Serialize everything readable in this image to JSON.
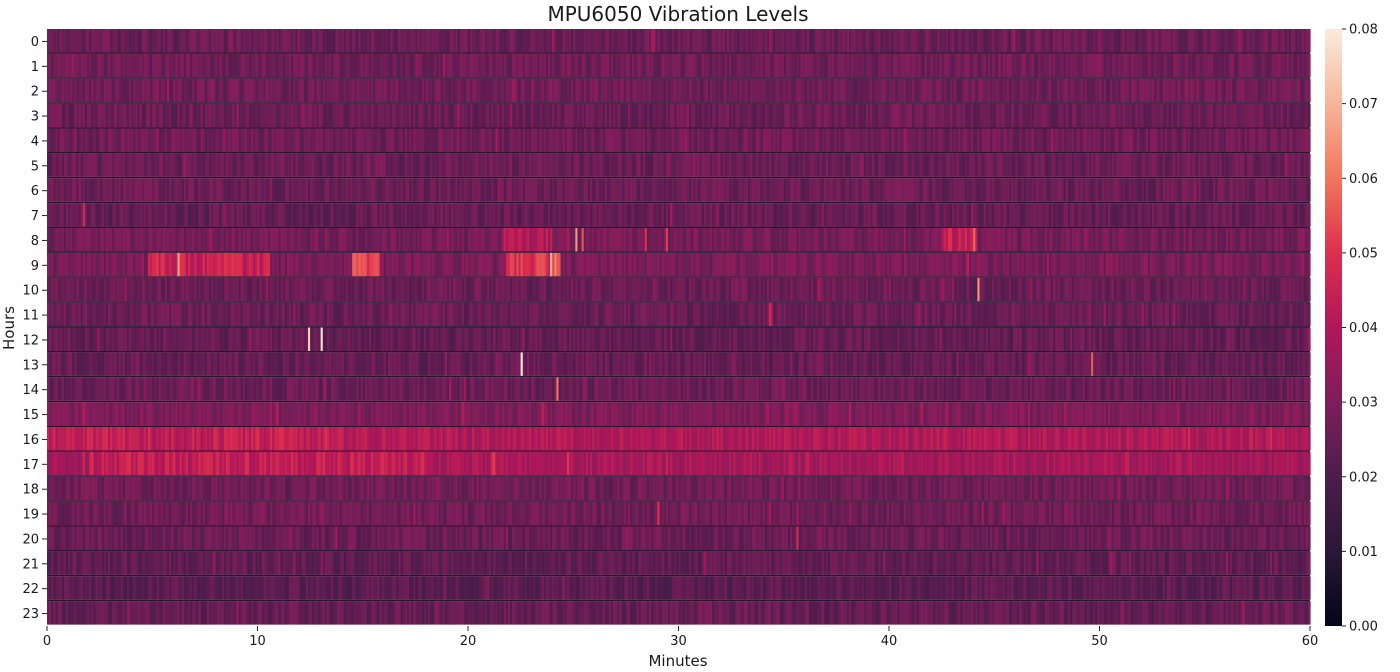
{
  "chart_data": {
    "type": "heatmap",
    "title": "MPU6050 Vibration Levels",
    "xlabel": "Minutes",
    "ylabel": "Hours",
    "x_range": [
      0,
      60
    ],
    "x_ticks": [
      0,
      10,
      20,
      30,
      40,
      50,
      60
    ],
    "x_tick_labels": [
      "0",
      "10",
      "20",
      "30",
      "40",
      "50",
      "60"
    ],
    "rows": [
      "0",
      "1",
      "2",
      "3",
      "4",
      "5",
      "6",
      "7",
      "8",
      "9",
      "10",
      "11",
      "12",
      "13",
      "14",
      "15",
      "16",
      "17",
      "18",
      "19",
      "20",
      "21",
      "22",
      "23"
    ],
    "samples_per_row": 600,
    "colormap": "rocket",
    "colorbar": {
      "min": 0.0,
      "max": 0.08,
      "ticks": [
        0.0,
        0.01,
        0.02,
        0.03,
        0.04,
        0.05,
        0.06,
        0.07,
        0.08
      ],
      "tick_labels": [
        "0.00",
        "0.01",
        "0.02",
        "0.03",
        "0.04",
        "0.05",
        "0.06",
        "0.07",
        "0.08"
      ]
    },
    "row_base_levels": [
      0.026,
      0.027,
      0.027,
      0.026,
      0.027,
      0.026,
      0.026,
      0.025,
      0.028,
      0.029,
      0.026,
      0.026,
      0.025,
      0.025,
      0.026,
      0.03,
      0.04,
      0.038,
      0.027,
      0.027,
      0.026,
      0.024,
      0.023,
      0.025
    ],
    "spikes": [
      {
        "hour": 7,
        "minute": 1.7,
        "value": 0.048
      },
      {
        "hour": 8,
        "minute": 25.1,
        "value": 0.065
      },
      {
        "hour": 8,
        "minute": 25.4,
        "value": 0.055
      },
      {
        "hour": 8,
        "minute": 28.4,
        "value": 0.05
      },
      {
        "hour": 8,
        "minute": 29.4,
        "value": 0.052
      },
      {
        "hour": 8,
        "minute": 44.0,
        "value": 0.058
      },
      {
        "hour": 9,
        "minute": 5.2,
        "value": 0.052
      },
      {
        "hour": 9,
        "minute": 6.2,
        "value": 0.068
      },
      {
        "hour": 9,
        "minute": 8.5,
        "value": 0.05
      },
      {
        "hour": 9,
        "minute": 10.3,
        "value": 0.048
      },
      {
        "hour": 9,
        "minute": 15.0,
        "value": 0.056
      },
      {
        "hour": 9,
        "minute": 15.5,
        "value": 0.054
      },
      {
        "hour": 9,
        "minute": 22.3,
        "value": 0.054
      },
      {
        "hour": 9,
        "minute": 23.9,
        "value": 0.07
      },
      {
        "hour": 9,
        "minute": 24.1,
        "value": 0.062
      },
      {
        "hour": 10,
        "minute": 44.2,
        "value": 0.065
      },
      {
        "hour": 11,
        "minute": 34.3,
        "value": 0.048
      },
      {
        "hour": 12,
        "minute": 12.4,
        "value": 0.075
      },
      {
        "hour": 12,
        "minute": 13.0,
        "value": 0.078
      },
      {
        "hour": 13,
        "minute": 22.5,
        "value": 0.08
      },
      {
        "hour": 13,
        "minute": 49.6,
        "value": 0.056
      },
      {
        "hour": 14,
        "minute": 24.2,
        "value": 0.06
      },
      {
        "hour": 19,
        "minute": 29.0,
        "value": 0.05
      },
      {
        "hour": 20,
        "minute": 35.6,
        "value": 0.048
      }
    ],
    "bursts": [
      {
        "hour": 9,
        "from": 4.8,
        "to": 10.6,
        "value": 0.045
      },
      {
        "hour": 9,
        "from": 14.5,
        "to": 15.8,
        "value": 0.052
      },
      {
        "hour": 9,
        "from": 21.8,
        "to": 24.4,
        "value": 0.05
      },
      {
        "hour": 8,
        "from": 21.6,
        "to": 24.0,
        "value": 0.04
      },
      {
        "hour": 8,
        "from": 42.5,
        "to": 44.2,
        "value": 0.044
      },
      {
        "hour": 16,
        "from": 0,
        "to": 14.0,
        "value": 0.044
      },
      {
        "hour": 17,
        "from": 2.0,
        "to": 18.0,
        "value": 0.044
      }
    ]
  }
}
